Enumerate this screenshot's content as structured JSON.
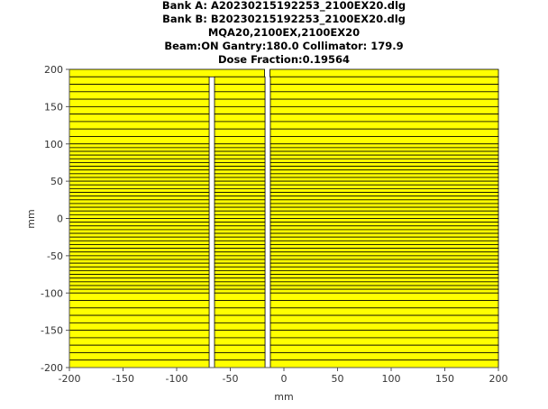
{
  "chart_data": {
    "type": "mlc-leaf-plot",
    "title_lines": [
      "Bank A: A20230215192253_2100EX20.dlg",
      "Bank B: B20230215192253_2100EX20.dlg",
      "MQA20,2100EX,2100EX20",
      "Beam:ON Gantry:180.0 Collimator: 179.9",
      "Dose Fraction:0.19564"
    ],
    "xlabel": "mm",
    "ylabel": "mm",
    "xlim": [
      -200,
      200
    ],
    "ylim": [
      -200,
      200
    ],
    "xticks": [
      -200,
      -150,
      -100,
      -50,
      0,
      50,
      100,
      150,
      200
    ],
    "yticks": [
      200,
      150,
      100,
      50,
      0,
      -50,
      -100,
      -150,
      -200
    ],
    "leaf_color": "#ffff00",
    "leaf_edge_color": "#000000",
    "leaf_widths_mm": [
      {
        "count": 10,
        "width": 10
      },
      {
        "count": 40,
        "width": 5
      },
      {
        "count": 10,
        "width": 10
      }
    ],
    "gaps_mm": [
      [
        -69.7,
        -64.7
      ],
      [
        -17.6,
        -12.6
      ]
    ],
    "first_leaf_gaps_mm": [
      [
        -18.0,
        -13.0
      ]
    ]
  }
}
